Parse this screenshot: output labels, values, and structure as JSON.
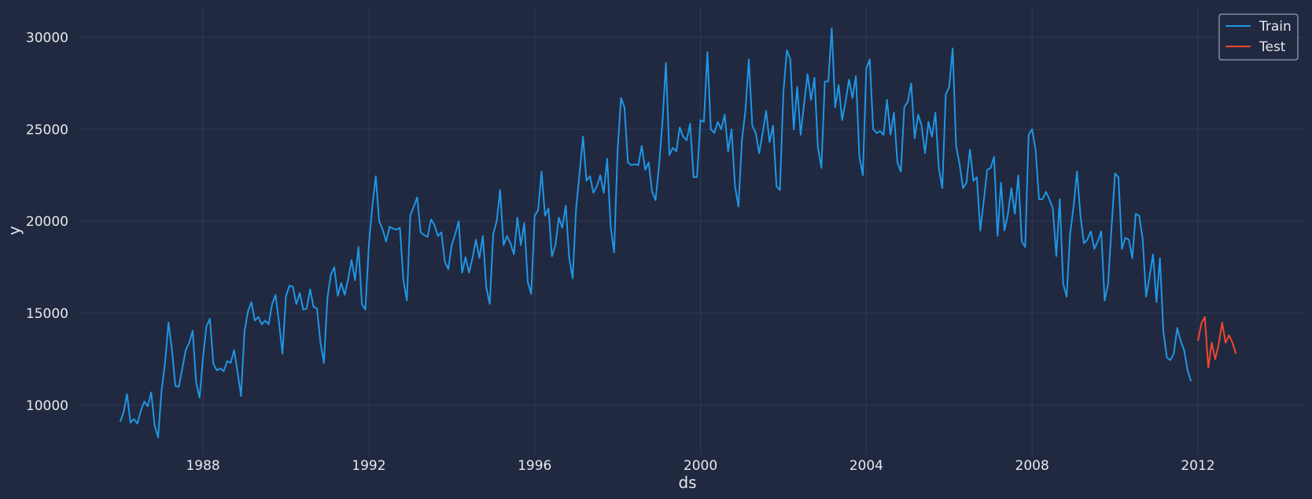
{
  "chart_data": {
    "type": "line",
    "xlabel": "ds",
    "ylabel": "y",
    "xlim": [
      1985.0,
      2014.6
    ],
    "ylim": [
      7300,
      31600
    ],
    "x_ticks": [
      1988,
      1992,
      1996,
      2000,
      2004,
      2008,
      2012
    ],
    "y_ticks": [
      10000,
      15000,
      20000,
      25000,
      30000
    ],
    "grid": true,
    "legend": "top-right",
    "x_unit": "year",
    "series": [
      {
        "name": "Train",
        "color": "#1f96e6",
        "x_start": 1986.0,
        "x_step": 0.0833333,
        "values": [
          9100,
          9600,
          10600,
          9050,
          9250,
          9000,
          9700,
          10200,
          9950,
          10700,
          8900,
          8250,
          10800,
          12300,
          14500,
          13000,
          11050,
          11000,
          12000,
          13000,
          13400,
          14050,
          11250,
          10400,
          12600,
          14300,
          14700,
          12250,
          11900,
          12000,
          11850,
          12400,
          12300,
          13000,
          11800,
          10500,
          14000,
          15100,
          15600,
          14600,
          14800,
          14400,
          14600,
          14400,
          15500,
          16000,
          14500,
          12800,
          15900,
          16500,
          16450,
          15500,
          16100,
          15200,
          15250,
          16300,
          15350,
          15250,
          13400,
          12300,
          15800,
          17100,
          17500,
          15950,
          16650,
          16000,
          16850,
          17900,
          16800,
          18600,
          15500,
          15200,
          18700,
          20800,
          22450,
          20000,
          19550,
          18900,
          19700,
          19600,
          19550,
          19650,
          16800,
          15700,
          20300,
          20800,
          21300,
          19400,
          19250,
          19150,
          20100,
          19800,
          19200,
          19400,
          17800,
          17400,
          18700,
          19300,
          20000,
          17200,
          18050,
          17200,
          18000,
          19000,
          18000,
          19200,
          16400,
          15500,
          19300,
          20000,
          21700,
          18700,
          19200,
          18800,
          18200,
          20200,
          18700,
          19900,
          16700,
          16050,
          20300,
          20600,
          22700,
          20300,
          20700,
          18100,
          18700,
          20200,
          19650,
          20850,
          18000,
          16900,
          20700,
          22600,
          24600,
          22200,
          22450,
          21550,
          21900,
          22500,
          21550,
          23400,
          19700,
          18300,
          23800,
          26700,
          26200,
          23200,
          23050,
          23100,
          23050,
          24100,
          22800,
          23200,
          21600,
          21150,
          23000,
          25400,
          28600,
          23600,
          24000,
          23800,
          25100,
          24600,
          24400,
          25300,
          22400,
          22400,
          25500,
          25400,
          29200,
          25000,
          24800,
          25400,
          25000,
          25800,
          23800,
          25000,
          21900,
          20800,
          24400,
          26000,
          28800,
          25200,
          24800,
          23700,
          24800,
          26000,
          24300,
          25200,
          21900,
          21700,
          27000,
          29300,
          28800,
          25000,
          27300,
          24700,
          26400,
          28000,
          26600,
          27800,
          24000,
          22900,
          27600,
          27600,
          30500,
          26200,
          27400,
          25500,
          26500,
          27700,
          26700,
          27900,
          23500,
          22500,
          28300,
          28800,
          25000,
          24800,
          24900,
          24700,
          26600,
          24700,
          25900,
          23200,
          22700,
          26200,
          26500,
          27500,
          24500,
          25800,
          25200,
          23700,
          25400,
          24600,
          25900,
          22900,
          21800,
          26900,
          27300,
          29400,
          24100,
          23100,
          21800,
          22100,
          23900,
          22200,
          22400,
          19500,
          21100,
          22800,
          22900,
          23500,
          19200,
          22100,
          19500,
          20400,
          21800,
          20400,
          22500,
          18900,
          18600,
          24700,
          25000,
          23900,
          21200,
          21200,
          21600,
          21200,
          20700,
          18100,
          21200,
          16600,
          15900,
          19300,
          20800,
          22700,
          20300,
          18800,
          19000,
          19450,
          18500,
          18900,
          19450,
          15700,
          16600,
          19700,
          22600,
          22400,
          18500,
          19100,
          19000,
          18000,
          20400,
          20300,
          19050,
          15900,
          17000,
          18200,
          15600,
          18000,
          14000,
          12600,
          12450,
          12800,
          14200,
          13500,
          13000,
          11900,
          11300
        ]
      },
      {
        "name": "Test",
        "color": "#f2472f",
        "x_start": 2012.0,
        "x_step": 0.0833333,
        "values": [
          13500,
          14450,
          14800,
          12050,
          13400,
          12500,
          13300,
          14500,
          13400,
          13800,
          13400,
          12800
        ]
      }
    ]
  }
}
